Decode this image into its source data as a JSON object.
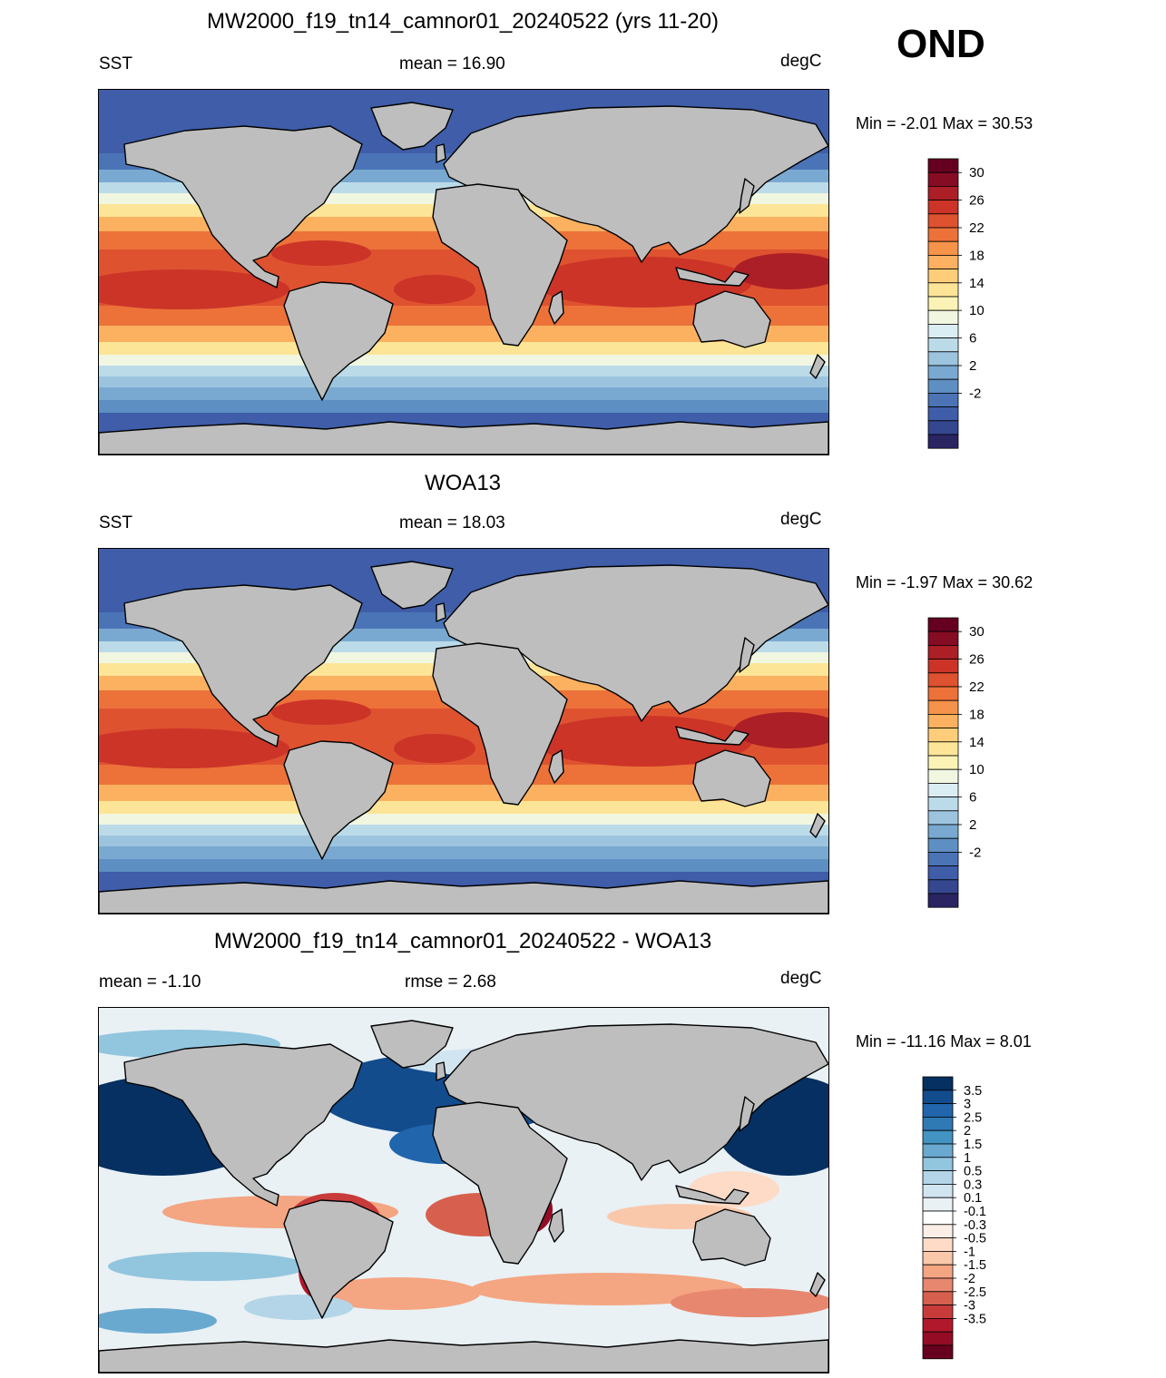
{
  "season": "OND",
  "units": "degC",
  "panels": [
    {
      "title": "MW2000_f19_tn14_camnor01_20240522 (yrs 11-20)",
      "left_label": "SST",
      "center_label": "mean =  16.90",
      "right_label": "degC",
      "minmax": "Min =  -2.01 Max =  30.53",
      "map_type": "sst-model"
    },
    {
      "title": "WOA13",
      "left_label": "SST",
      "center_label": "mean =  18.03",
      "right_label": "degC",
      "minmax": "Min =  -1.97 Max =  30.62",
      "map_type": "sst-obs"
    },
    {
      "title": "MW2000_f19_tn14_camnor01_20240522 - WOA13",
      "left_label": "mean =  -1.10",
      "center_label": "rmse =   2.68",
      "right_label": "degC",
      "minmax": "Min = -11.16 Max =   8.01",
      "map_type": "sst-difference"
    }
  ],
  "colorbars": {
    "sst": {
      "colors": [
        "#2a2463",
        "#34478f",
        "#3f5da8",
        "#4a74b6",
        "#5e8fc3",
        "#79a9d0",
        "#9cc4de",
        "#bcdbe9",
        "#daedf2",
        "#f0f6e0",
        "#fbf3b5",
        "#fde597",
        "#fdcd79",
        "#fbb160",
        "#f5934a",
        "#ec7239",
        "#df5230",
        "#cc3428",
        "#ac1f26",
        "#860c24",
        "#660020"
      ],
      "tick_labels": [
        "30",
        "26",
        "22",
        "18",
        "14",
        "10",
        "6",
        "2",
        "-2"
      ]
    },
    "diff": {
      "colors": [
        "#67001f",
        "#940c24",
        "#b2182b",
        "#c83b3a",
        "#d6604d",
        "#e7876f",
        "#f4a582",
        "#f9c8ab",
        "#fddbc7",
        "#fbeee6",
        "#ffffff",
        "#e9f1f5",
        "#d1e5f0",
        "#b3d5e7",
        "#92c5de",
        "#6aa9cf",
        "#4393c3",
        "#2f79b5",
        "#2166ac",
        "#134c8d",
        "#053061"
      ],
      "tick_labels": [
        "3.5",
        "3",
        "2.5",
        "2",
        "1.5",
        "1",
        "0.5",
        "0.3",
        "0.1",
        "-0.1",
        "-0.3",
        "-0.5",
        "-1",
        "-1.5",
        "-2",
        "-2.5",
        "-3",
        "-3.5"
      ]
    }
  },
  "colors": {
    "land": "#bebebe",
    "coast": "#000000",
    "sea_ice_cap": "#3b54a0"
  }
}
